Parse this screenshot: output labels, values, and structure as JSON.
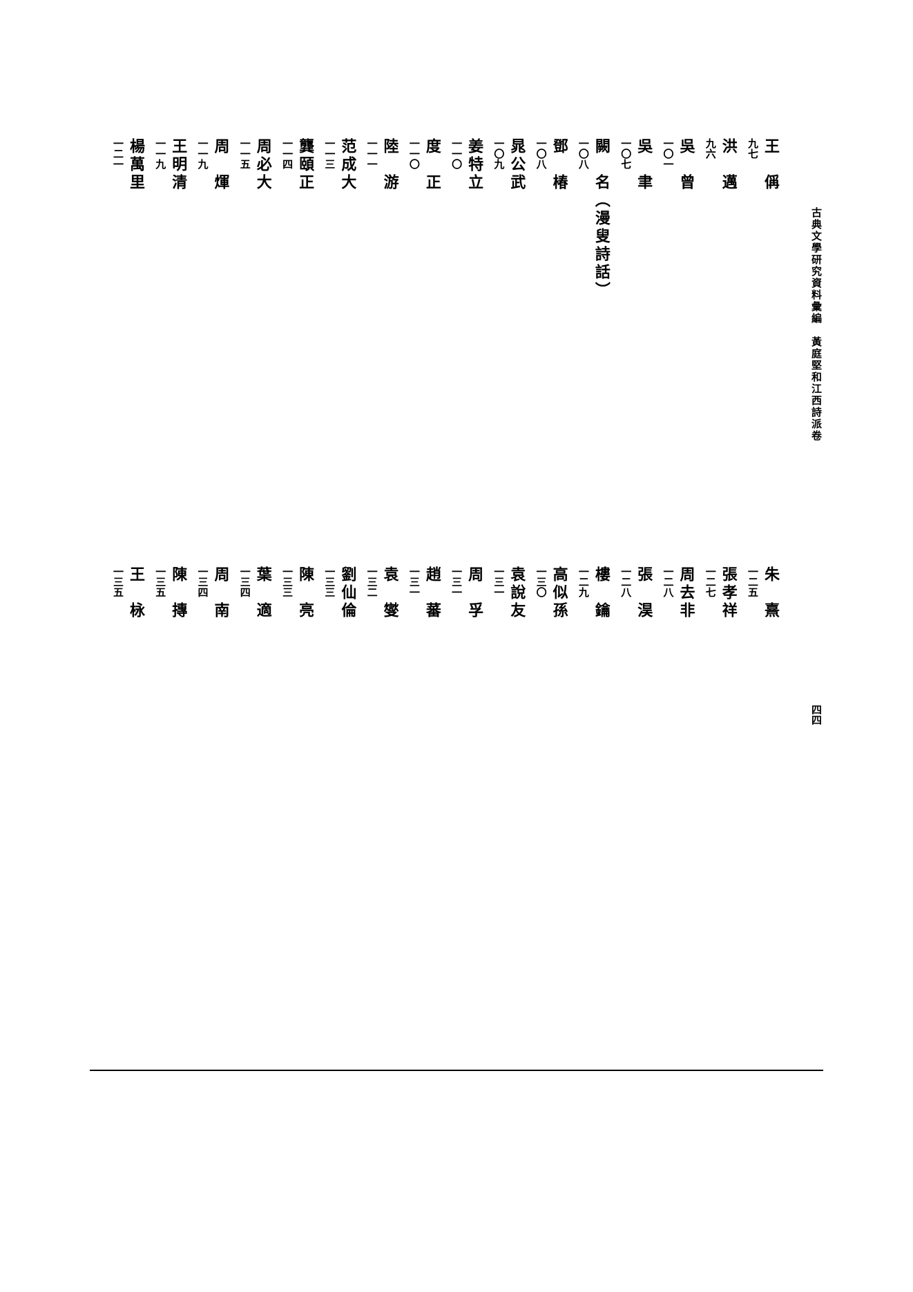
{
  "header": {
    "title": "古典文學研究資料彙編　黃庭堅和江西詩派卷"
  },
  "page_number": "四四",
  "toc_upper": [
    {
      "name": "王　偁",
      "page": "九七"
    },
    {
      "name": "洪　邁",
      "page": "九六"
    },
    {
      "name": "吳　曾",
      "page": "一〇一"
    },
    {
      "name": "吳　聿",
      "page": "一〇七"
    },
    {
      "name": "闕　名（漫叟詩話）",
      "page": "一〇八"
    },
    {
      "name": "鄧　椿",
      "page": "一〇八"
    },
    {
      "name": "晁公武",
      "page": "一〇九"
    },
    {
      "name": "姜特立",
      "page": "一一〇"
    },
    {
      "name": "度　正",
      "page": "一一〇"
    },
    {
      "name": "陸　游",
      "page": "一一一"
    },
    {
      "name": "范成大",
      "page": "一一三"
    },
    {
      "name": "龔頤正",
      "page": "一一四"
    },
    {
      "name": "周必大",
      "page": "一一五"
    },
    {
      "name": "周　煇",
      "page": "一一九"
    },
    {
      "name": "王明清",
      "page": "一一九"
    },
    {
      "name": "楊萬里",
      "page": "一二一"
    }
  ],
  "toc_lower": [
    {
      "name": "朱　熹",
      "page": "一二五"
    },
    {
      "name": "張孝祥",
      "page": "一二七"
    },
    {
      "name": "周去非",
      "page": "一二八"
    },
    {
      "name": "張　淏",
      "page": "一二八"
    },
    {
      "name": "樓　鑰",
      "page": "一二九"
    },
    {
      "name": "高似孫",
      "page": "一三〇"
    },
    {
      "name": "袁說友",
      "page": "一三一"
    },
    {
      "name": "周　孚",
      "page": "一三一"
    },
    {
      "name": "趙　蕃",
      "page": "一三一"
    },
    {
      "name": "袁　燮",
      "page": "一三二"
    },
    {
      "name": "劉仙倫",
      "page": "一三三"
    },
    {
      "name": "陳　亮",
      "page": "一三三"
    },
    {
      "name": "葉　適",
      "page": "一三四"
    },
    {
      "name": "周　南",
      "page": "一三四"
    },
    {
      "name": "陳　摶",
      "page": "一三五"
    },
    {
      "name": "王　栐",
      "page": "一三五"
    }
  ],
  "style": {
    "background_color": "#ffffff",
    "text_color": "#000000",
    "name_fontsize": 22,
    "page_fontsize": 15,
    "header_fontsize": 15,
    "column_height": 520,
    "font_family": "SimSun"
  }
}
